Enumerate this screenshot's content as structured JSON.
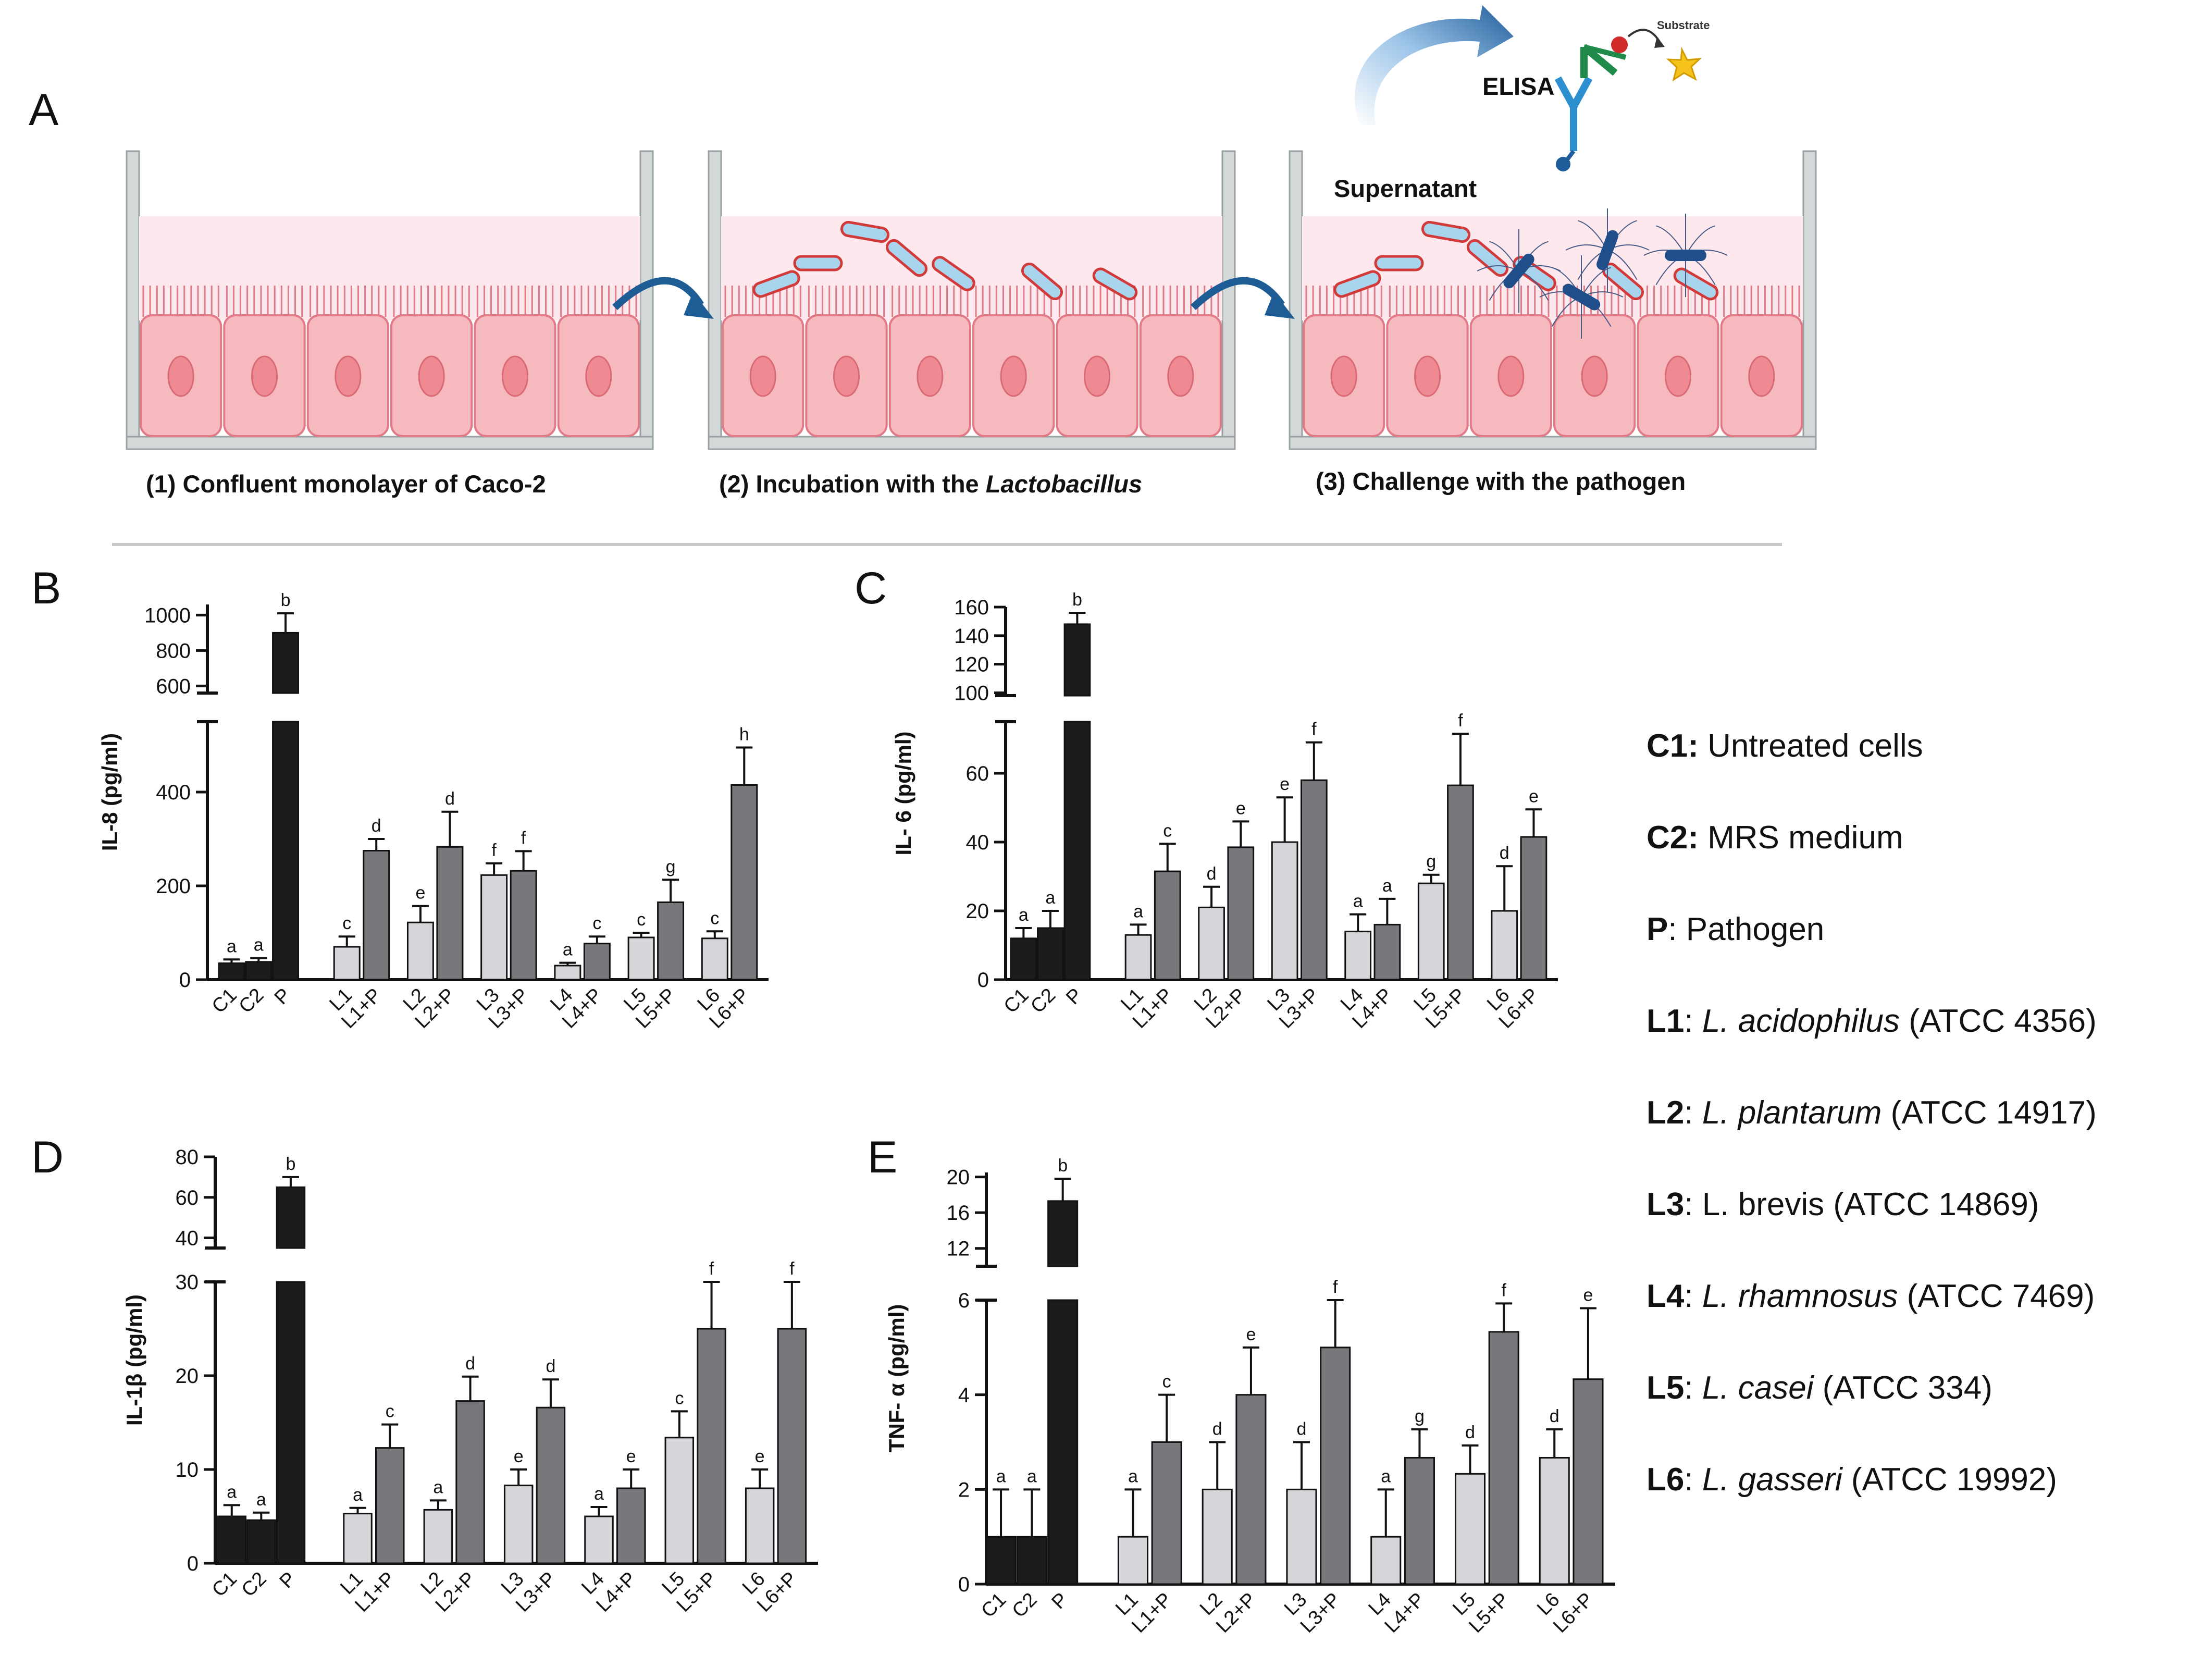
{
  "panelA": {
    "label": "A",
    "elisa_label": "ELISA",
    "substrate_label": "Substrate",
    "supernatant_label": "Supernatant",
    "step1_label": "(1) Confluent monolayer of Caco-2",
    "step2_prefix": "(2) Incubation with the ",
    "step2_italic": "Lactobacillus",
    "step3_label": "(3) Challenge with the pathogen"
  },
  "legend": [
    {
      "key": "C1:",
      "plain": " Untreated cells",
      "italic": "",
      "suffix": ""
    },
    {
      "key": "C2:",
      "plain": " MRS medium",
      "italic": "",
      "suffix": ""
    },
    {
      "key": "P",
      "plain": ": Pathogen",
      "italic": "",
      "suffix": ""
    },
    {
      "key": "L1",
      "plain": ": ",
      "italic": "L. acidophilus",
      "suffix": " (ATCC 4356)"
    },
    {
      "key": "L2",
      "plain": ": ",
      "italic": "L. plantarum",
      "suffix": " (ATCC 14917)"
    },
    {
      "key": "L3",
      "plain": ": L. brevis (ATCC 14869)",
      "italic": "",
      "suffix": ""
    },
    {
      "key": "L4",
      "plain": ": ",
      "italic": "L. rhamnosus",
      "suffix": " (ATCC 7469)"
    },
    {
      "key": "L5",
      "plain": ": ",
      "italic": "L. casei",
      "suffix": " (ATCC 334)"
    },
    {
      "key": "L6",
      "plain": ": ",
      "italic": "L. gasseri",
      "suffix": " (ATCC 19992)"
    }
  ],
  "colors": {
    "control": "#1c1c1c",
    "lacto": "#d4d6da",
    "lacto_pathogen": "#76787c"
  },
  "chart_data": [
    {
      "type": "bar",
      "panel": "B",
      "ylabel": "IL-8 (pg/ml)",
      "categories": [
        "C1",
        "C2",
        "P",
        "L1",
        "L1+P",
        "L2",
        "L2+P",
        "L3",
        "L3+P",
        "L4",
        "L4+P",
        "L5",
        "L5+P",
        "L6",
        "L6+P"
      ],
      "values": [
        35,
        38,
        900,
        70,
        275,
        122,
        283,
        223,
        232,
        30,
        77,
        90,
        165,
        88,
        415
      ],
      "errors": [
        8,
        8,
        110,
        22,
        25,
        35,
        75,
        25,
        42,
        6,
        15,
        10,
        48,
        15,
        80
      ],
      "sig": [
        "a",
        "a",
        "b",
        "c",
        "d",
        "e",
        "d",
        "f",
        "f",
        "a",
        "c",
        "c",
        "g",
        "c",
        "h"
      ],
      "lower_range": [
        0,
        550
      ],
      "lower_ticks": [
        0,
        200,
        400
      ],
      "upper_range": [
        560,
        1060
      ],
      "upper_ticks": [
        600,
        800,
        1000
      ]
    },
    {
      "type": "bar",
      "panel": "C",
      "ylabel": "IL- 6 (pg/ml)",
      "categories": [
        "C1",
        "C2",
        "P",
        "L1",
        "L1+P",
        "L2",
        "L2+P",
        "L3",
        "L3+P",
        "L4",
        "L4+P",
        "L5",
        "L5+P",
        "L6",
        "L6+P"
      ],
      "values": [
        12,
        15,
        148,
        13,
        31.5,
        21,
        38.5,
        40,
        58,
        14,
        16,
        28,
        56.5,
        20,
        41.5
      ],
      "errors": [
        3,
        5,
        8,
        3,
        8,
        6,
        7.5,
        13,
        11,
        5,
        7.5,
        2.5,
        15,
        13,
        8
      ],
      "sig": [
        "a",
        "a",
        "b",
        "a",
        "c",
        "d",
        "e",
        "e",
        "f",
        "a",
        "a",
        "g",
        "f",
        "d",
        "e"
      ],
      "lower_range": [
        0,
        75
      ],
      "lower_ticks": [
        0,
        20,
        40,
        60
      ],
      "upper_range": [
        98,
        160
      ],
      "upper_ticks": [
        100,
        120,
        140,
        160
      ]
    },
    {
      "type": "bar",
      "panel": "D",
      "ylabel": "IL-1β (pg/ml)",
      "categories": [
        "C1",
        "C2",
        "P",
        "L1",
        "L1+P",
        "L2",
        "L2+P",
        "L3",
        "L3+P",
        "L4",
        "L4+P",
        "L5",
        "L5+P",
        "L6",
        "L6+P"
      ],
      "values": [
        5,
        4.6,
        65,
        5.3,
        12.3,
        5.7,
        17.3,
        8.3,
        16.6,
        5,
        8,
        13.4,
        25,
        8,
        25
      ],
      "errors": [
        1.2,
        0.8,
        5,
        0.6,
        2.5,
        1,
        2.6,
        1.7,
        3,
        1,
        2,
        2.8,
        5,
        2,
        5
      ],
      "sig": [
        "a",
        "a",
        "b",
        "a",
        "c",
        "a",
        "d",
        "e",
        "d",
        "a",
        "e",
        "c",
        "f",
        "e",
        "f"
      ],
      "lower_range": [
        0,
        30
      ],
      "lower_ticks": [
        0,
        10,
        20,
        30
      ],
      "upper_range": [
        35,
        80
      ],
      "upper_ticks": [
        40,
        60,
        80
      ]
    },
    {
      "type": "bar",
      "panel": "E",
      "ylabel": "TNF- α (pg/ml)",
      "categories": [
        "C1",
        "C2",
        "P",
        "L1",
        "L1+P",
        "L2",
        "L2+P",
        "L3",
        "L3+P",
        "L4",
        "L4+P",
        "L5",
        "L5+P",
        "L6",
        "L6+P"
      ],
      "values": [
        1,
        1,
        17.3,
        1,
        3,
        2,
        4,
        2,
        5,
        1,
        2.67,
        2.33,
        5.33,
        2.67,
        4.33
      ],
      "errors": [
        1,
        1,
        2.5,
        1,
        1,
        1,
        1,
        1,
        1,
        1,
        0.6,
        0.6,
        0.6,
        0.6,
        1.5
      ],
      "sig": [
        "a",
        "a",
        "b",
        "a",
        "c",
        "d",
        "e",
        "d",
        "f",
        "a",
        "g",
        "d",
        "f",
        "d",
        "e"
      ],
      "lower_range": [
        0,
        6
      ],
      "lower_ticks": [
        0,
        2,
        4,
        6
      ],
      "upper_range": [
        10,
        20.5
      ],
      "upper_ticks": [
        12,
        16,
        20
      ]
    }
  ]
}
